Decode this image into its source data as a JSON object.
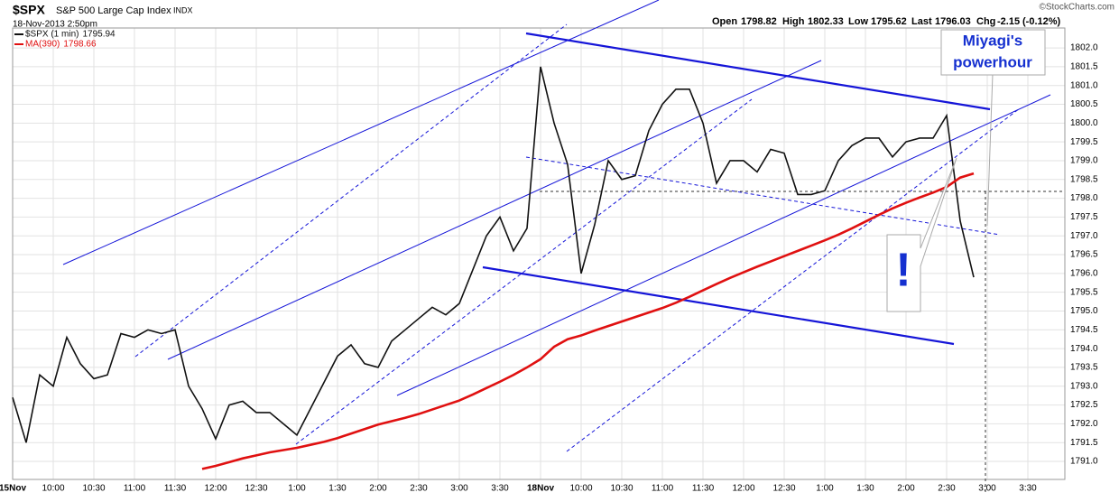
{
  "chart_data": {
    "type": "line",
    "symbol": "$SPX",
    "name": "S&P 500 Large Cap Index",
    "exchange": "INDX",
    "date": "18-Nov-2013 2:50pm",
    "quote": {
      "open_label": "Open",
      "open": 1798.82,
      "high_label": "High",
      "high": 1802.33,
      "low_label": "Low",
      "low": 1795.62,
      "last_label": "Last",
      "last": 1796.03,
      "chg_label": "Chg",
      "chg": -2.15,
      "chg_pct": "(-0.12%)"
    },
    "credit": "©StockCharts.com",
    "annotations": [
      "Miyagi's",
      "powerhour",
      "!"
    ],
    "categories": [
      "15Nov",
      null,
      null,
      "10:00",
      null,
      null,
      "10:30",
      null,
      null,
      "11:00",
      null,
      null,
      "11:30",
      null,
      null,
      "12:00",
      null,
      null,
      "12:30",
      null,
      null,
      "1:00",
      null,
      null,
      "1:30",
      null,
      null,
      "2:00",
      null,
      null,
      "2:30",
      null,
      null,
      "3:00",
      null,
      null,
      "3:30",
      null,
      null,
      "18Nov",
      null,
      null,
      "10:00",
      null,
      null,
      "10:30",
      null,
      null,
      "11:00",
      null,
      null,
      "11:30",
      null,
      null,
      "12:00",
      null,
      null,
      "12:30",
      null,
      null,
      "1:00",
      null,
      null,
      "1:30",
      null,
      null,
      "2:00",
      null,
      null,
      "2:30",
      null,
      null,
      "3:00",
      null,
      null,
      "3:30",
      null,
      null
    ],
    "series": [
      {
        "name": "$SPX (1 min)",
        "legend_value": 1795.94,
        "color": "#111111",
        "values": [
          1792.7,
          1791.5,
          1793.3,
          1793.0,
          1794.3,
          1793.6,
          1793.2,
          1793.3,
          1794.4,
          1794.3,
          1794.5,
          1794.4,
          1794.5,
          1793.0,
          1792.4,
          1791.6,
          1792.5,
          1792.6,
          1792.3,
          1792.3,
          1792.0,
          1791.7,
          1792.4,
          1793.1,
          1793.8,
          1794.1,
          1793.6,
          1793.5,
          1794.2,
          1794.5,
          1794.8,
          1795.1,
          1794.9,
          1795.2,
          1796.1,
          1797.0,
          1797.5,
          1796.6,
          1797.2,
          1801.5,
          1800.0,
          1798.9,
          1796.0,
          1797.3,
          1799.0,
          1798.5,
          1798.6,
          1799.8,
          1800.5,
          1800.9,
          1800.9,
          1800.0,
          1798.4,
          1799.0,
          1799.0,
          1798.7,
          1799.3,
          1799.2,
          1798.1,
          1798.1,
          1798.2,
          1799.0,
          1799.4,
          1799.6,
          1799.6,
          1799.1,
          1799.5,
          1799.6,
          1799.6,
          1800.2,
          1797.4,
          1795.9,
          null,
          null,
          null,
          null,
          null,
          null
        ]
      },
      {
        "name": "MA(390)",
        "legend_value": 1798.66,
        "color": "#e01010",
        "values": [
          null,
          null,
          null,
          null,
          null,
          null,
          null,
          null,
          null,
          null,
          null,
          null,
          null,
          null,
          1790.8,
          1790.88,
          1790.98,
          1791.08,
          1791.16,
          1791.24,
          1791.3,
          1791.36,
          1791.44,
          1791.52,
          1791.62,
          1791.74,
          1791.86,
          1791.98,
          1792.07,
          1792.16,
          1792.26,
          1792.38,
          1792.5,
          1792.62,
          1792.78,
          1792.95,
          1793.12,
          1793.3,
          1793.5,
          1793.72,
          1794.05,
          1794.25,
          1794.35,
          1794.48,
          1794.6,
          1794.72,
          1794.84,
          1794.96,
          1795.08,
          1795.22,
          1795.38,
          1795.55,
          1795.72,
          1795.88,
          1796.03,
          1796.18,
          1796.32,
          1796.46,
          1796.6,
          1796.74,
          1796.88,
          1797.03,
          1797.2,
          1797.38,
          1797.56,
          1797.73,
          1797.88,
          1798.02,
          1798.15,
          1798.3,
          1798.55,
          1798.66,
          null,
          null,
          null,
          null,
          null,
          null
        ]
      }
    ],
    "ylim": [
      1790.52,
      1802.53
    ],
    "yticks": [
      {
        "value": 1791,
        "label": "1791.0"
      },
      1791.5,
      {
        "value": 1792,
        "label": "1792.0"
      },
      1792.5,
      {
        "value": 1793,
        "label": "1793.0"
      },
      1793.5,
      {
        "value": 1794,
        "label": "1794.0"
      },
      1794.5,
      {
        "value": 1795,
        "label": "1795.0"
      },
      1795.5,
      {
        "value": 1796,
        "label": "1796.0"
      },
      1796.5,
      {
        "value": 1797,
        "label": "1797.0"
      },
      1797.5,
      {
        "value": 1798,
        "label": "1798.0"
      },
      1798.5,
      {
        "value": 1799,
        "label": "1799.0"
      },
      1799.5,
      {
        "value": 1800,
        "label": "1800.0"
      },
      1800.5,
      {
        "value": 1801,
        "label": "1801.0"
      },
      1801.5,
      {
        "value": 1802,
        "label": "1802.0"
      }
    ],
    "grid": true
  }
}
